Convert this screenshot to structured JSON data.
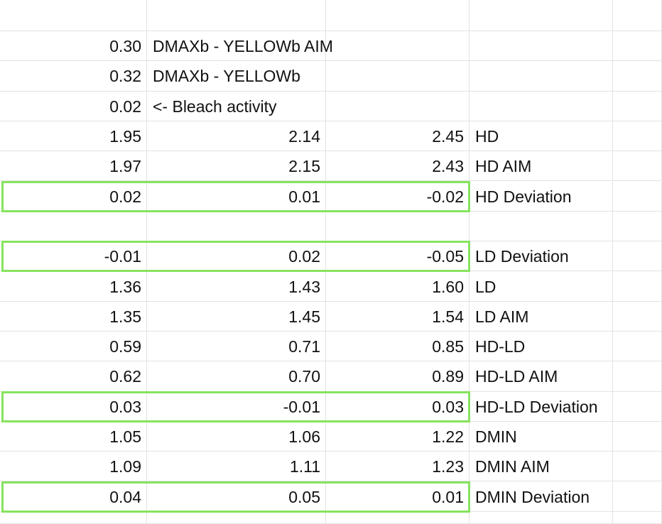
{
  "sheet": {
    "rows": [
      {
        "cells": [
          null,
          null,
          null,
          null,
          null
        ]
      },
      {
        "cells": [
          "0.30",
          "DMAXb - YELLOWb AIM",
          null,
          null,
          null
        ]
      },
      {
        "cells": [
          "0.32",
          "DMAXb - YELLOWb",
          null,
          null,
          null
        ]
      },
      {
        "cells": [
          "0.02",
          "<- Bleach activity",
          null,
          null,
          null
        ]
      },
      {
        "cells": [
          "1.95",
          "2.14",
          "2.45",
          "HD",
          null
        ]
      },
      {
        "cells": [
          "1.97",
          "2.15",
          "2.43",
          "HD AIM",
          null
        ]
      },
      {
        "cells": [
          "0.02",
          "0.01",
          "-0.02",
          "HD Deviation",
          null
        ],
        "highlight": true
      },
      {
        "cells": [
          null,
          null,
          null,
          null,
          null
        ]
      },
      {
        "cells": [
          "-0.01",
          "0.02",
          "-0.05",
          "LD Deviation",
          null
        ],
        "highlight": true
      },
      {
        "cells": [
          "1.36",
          "1.43",
          "1.60",
          "LD",
          null
        ]
      },
      {
        "cells": [
          "1.35",
          "1.45",
          "1.54",
          "LD AIM",
          null
        ]
      },
      {
        "cells": [
          "0.59",
          "0.71",
          "0.85",
          "HD-LD",
          null
        ]
      },
      {
        "cells": [
          "0.62",
          "0.70",
          "0.89",
          "HD-LD AIM",
          null
        ]
      },
      {
        "cells": [
          "0.03",
          "-0.01",
          "0.03",
          "HD-LD Deviation",
          null
        ],
        "highlight": true
      },
      {
        "cells": [
          "1.05",
          "1.06",
          "1.22",
          "DMIN",
          null
        ]
      },
      {
        "cells": [
          "1.09",
          "1.11",
          "1.23",
          "DMIN AIM",
          null
        ]
      },
      {
        "cells": [
          "0.04",
          "0.05",
          "0.01",
          "DMIN Deviation",
          null
        ],
        "highlight": true
      },
      {
        "cells": [
          null,
          null,
          null,
          null,
          null
        ]
      }
    ],
    "highlight_color": "#86e35e"
  }
}
